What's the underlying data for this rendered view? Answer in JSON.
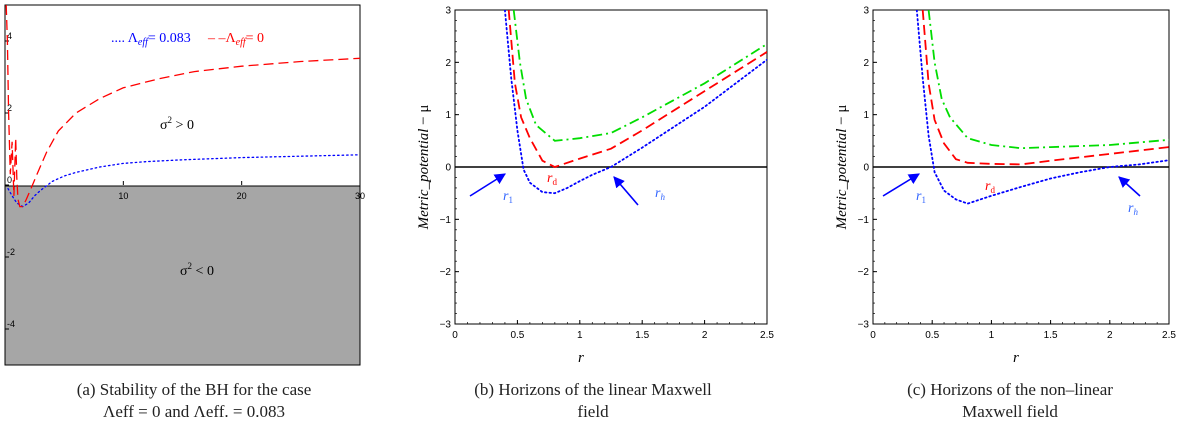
{
  "chart_data": [
    {
      "type": "line",
      "panel": "a",
      "xlim": [
        0,
        30
      ],
      "ylim": [
        -5,
        5
      ],
      "x_ticks": [
        "10",
        "20",
        "30"
      ],
      "y_ticks": [
        "4",
        "2",
        "0",
        "-2",
        "-4"
      ],
      "regions": {
        "upper": "σ² > 0",
        "lower": "σ² < 0",
        "lower_shaded": true,
        "shade_color": "#a6a6a6"
      },
      "legend": [
        "Λ_eff = 0.083",
        "Λ_eff = 0"
      ],
      "legend_placement": "top-right",
      "series": [
        {
          "name": "Λ_eff = 0.083",
          "color": "#0000ff",
          "style": "dotted",
          "x": [
            0.25,
            0.6,
            1.0,
            1.5,
            2.0,
            2.5,
            3,
            4,
            5,
            6,
            8,
            10,
            12,
            15,
            20,
            25,
            30
          ],
          "y": [
            -0.1,
            -0.3,
            -0.5,
            -0.6,
            -0.5,
            -0.3,
            -0.15,
            0.1,
            0.25,
            0.35,
            0.5,
            0.6,
            0.65,
            0.7,
            0.76,
            0.8,
            0.84
          ]
        },
        {
          "name": "Λ_eff = 0",
          "color": "#ff0000",
          "style": "dashed",
          "x": [
            0.1,
            0.2,
            0.3,
            0.45,
            0.6,
            0.75,
            0.9,
            1.0,
            1.1,
            1.25,
            1.5,
            1.8,
            2.2,
            2.7,
            3.5,
            4.5,
            6,
            8,
            10,
            13,
            16,
            20,
            25,
            30
          ],
          "y": [
            5.0,
            4.0,
            2.0,
            0.3,
            1.2,
            -0.3,
            1.3,
            0.2,
            -0.4,
            -0.6,
            -0.6,
            -0.4,
            -0.1,
            0.3,
            0.9,
            1.5,
            2.0,
            2.4,
            2.7,
            2.95,
            3.15,
            3.3,
            3.43,
            3.52
          ]
        }
      ],
      "caption": [
        "(a) Stability of the BH for the case",
        "Λeff = 0 and Λeff. = 0.083"
      ]
    },
    {
      "type": "line",
      "panel": "b",
      "xlabel": "r",
      "ylabel": "Metric_potential − μ",
      "xlim": [
        0,
        2.5
      ],
      "ylim": [
        -3,
        3
      ],
      "x_ticks": [
        "0",
        "0.5",
        "1",
        "1.5",
        "2",
        "2.5"
      ],
      "y_ticks": [
        "3",
        "2",
        "1",
        "0",
        "−1",
        "−2",
        "−3"
      ],
      "labels": {
        "r1": "r",
        "r1_sub": "1",
        "rd": "r",
        "rd_sub": "d",
        "rh": "r",
        "rh_sub": "h"
      },
      "series": [
        {
          "color": "#0000ff",
          "style": "dotted",
          "x": [
            0.4,
            0.45,
            0.5,
            0.55,
            0.6,
            0.7,
            0.8,
            0.9,
            1.0,
            1.1,
            1.25,
            1.5,
            2.0,
            2.5
          ],
          "y": [
            3.0,
            1.7,
            0.7,
            -0.05,
            -0.3,
            -0.48,
            -0.5,
            -0.4,
            -0.27,
            -0.15,
            0.0,
            0.37,
            1.15,
            2.05
          ]
        },
        {
          "color": "#ff0000",
          "style": "dashed",
          "x": [
            0.43,
            0.48,
            0.53,
            0.6,
            0.7,
            0.8,
            1.0,
            1.25,
            1.5,
            2.0,
            2.5
          ],
          "y": [
            3.0,
            1.6,
            0.95,
            0.55,
            0.12,
            0.0,
            0.16,
            0.35,
            0.7,
            1.45,
            2.2
          ]
        },
        {
          "color": "#00dd00",
          "style": "dashdot",
          "x": [
            0.47,
            0.52,
            0.57,
            0.65,
            0.8,
            1.0,
            1.25,
            1.5,
            2.0,
            2.5
          ],
          "y": [
            3.0,
            2.0,
            1.3,
            0.8,
            0.5,
            0.55,
            0.65,
            0.95,
            1.6,
            2.35
          ]
        }
      ],
      "caption": [
        "(b) Horizons of the linear Maxwell",
        "field"
      ]
    },
    {
      "type": "line",
      "panel": "c",
      "xlabel": "r",
      "ylabel": "Metric_potential − μ",
      "xlim": [
        0,
        2.5
      ],
      "ylim": [
        -3,
        3
      ],
      "x_ticks": [
        "0",
        "0.5",
        "1",
        "1.5",
        "2",
        "2.5"
      ],
      "y_ticks": [
        "3",
        "2",
        "1",
        "0",
        "−1",
        "−2",
        "−3"
      ],
      "labels": {
        "r1": "r",
        "r1_sub": "1",
        "rd": "r",
        "rd_sub": "d",
        "rh": "r",
        "rh_sub": "h"
      },
      "series": [
        {
          "color": "#0000ff",
          "style": "dotted",
          "x": [
            0.37,
            0.42,
            0.47,
            0.52,
            0.6,
            0.7,
            0.8,
            1.0,
            1.25,
            1.5,
            1.75,
            2.0,
            2.25,
            2.5
          ],
          "y": [
            3.0,
            1.7,
            0.6,
            -0.1,
            -0.45,
            -0.62,
            -0.7,
            -0.55,
            -0.38,
            -0.22,
            -0.1,
            0.0,
            0.05,
            0.13
          ]
        },
        {
          "color": "#ff0000",
          "style": "dashed",
          "x": [
            0.42,
            0.47,
            0.52,
            0.6,
            0.7,
            0.8,
            1.0,
            1.25,
            1.5,
            2.0,
            2.5
          ],
          "y": [
            3.0,
            1.6,
            0.9,
            0.45,
            0.15,
            0.08,
            0.06,
            0.05,
            0.12,
            0.25,
            0.38
          ]
        },
        {
          "color": "#00dd00",
          "style": "dashdot",
          "x": [
            0.47,
            0.52,
            0.58,
            0.65,
            0.8,
            1.0,
            1.25,
            1.5,
            2.0,
            2.5
          ],
          "y": [
            3.0,
            2.0,
            1.3,
            0.95,
            0.55,
            0.42,
            0.36,
            0.38,
            0.42,
            0.52
          ]
        }
      ],
      "caption": [
        "(c) Horizons of the non–linear",
        "Maxwell field"
      ]
    }
  ]
}
